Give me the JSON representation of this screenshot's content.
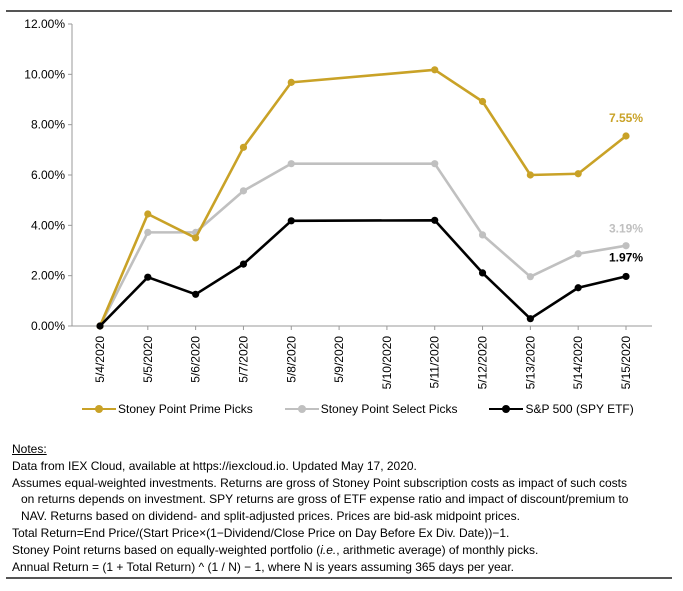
{
  "chart_data": {
    "type": "line",
    "categories": [
      "5/4/2020",
      "5/5/2020",
      "5/6/2020",
      "5/7/2020",
      "5/8/2020",
      "5/9/2020",
      "5/10/2020",
      "5/11/2020",
      "5/12/2020",
      "5/13/2020",
      "5/14/2020",
      "5/15/2020"
    ],
    "ylim": [
      0,
      12
    ],
    "yticks": [
      "0.00%",
      "2.00%",
      "4.00%",
      "6.00%",
      "8.00%",
      "10.00%",
      "12.00%"
    ],
    "series": [
      {
        "name": "Stoney Point Prime Picks",
        "color": "#C9A227",
        "values": [
          0.0,
          4.45,
          3.5,
          7.1,
          9.68,
          null,
          null,
          10.18,
          8.92,
          6.0,
          6.05,
          7.55
        ],
        "end_label": "7.55%"
      },
      {
        "name": "Stoney Point Select Picks",
        "color": "#C0C0C0",
        "values": [
          0.0,
          3.72,
          3.72,
          5.37,
          6.45,
          null,
          null,
          6.45,
          3.62,
          1.96,
          2.87,
          3.19
        ],
        "end_label": "3.19%"
      },
      {
        "name": "S&P 500 (SPY ETF)",
        "color": "#000000",
        "values": [
          0.0,
          1.94,
          1.26,
          2.46,
          4.18,
          null,
          null,
          4.2,
          2.11,
          0.29,
          1.52,
          1.97
        ],
        "end_label": "1.97%"
      }
    ]
  },
  "notes": {
    "title": "Notes:",
    "lines": [
      "Data from IEX Cloud, available at https://iexcloud.io. Updated May 17, 2020.",
      "Assumes equal-weighted investments. Returns are gross of Stoney Point subscription costs as impact of such costs",
      "on returns depends on investment. SPY returns are gross of ETF expense ratio and impact of discount/premium to",
      "NAV. Returns based on dividend- and split-adjusted prices. Prices are bid-ask midpoint prices.",
      "Total Return=End Price/(Start Price×(1−Dividend/Close Price on Day Before Ex Div. Date))−1.",
      "Stoney Point returns based on equally-weighted portfolio (",
      "i.e.",
      ", arithmetic average) of monthly picks.",
      "Annual Return = (1 + Total Return) ^ (1 / N) − 1, where N is years assuming 365 days per year."
    ]
  }
}
